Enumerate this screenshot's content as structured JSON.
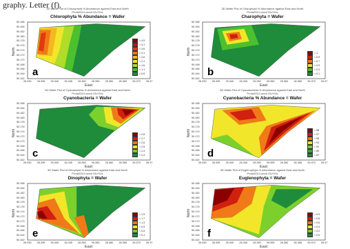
{
  "page": {
    "caption_fragment": "graphy. Letter (f)."
  },
  "colors": {
    "axis_box": "#222222",
    "plot_green": "#1e8c3a"
  },
  "panels": [
    {
      "letter": "a",
      "title": [
        "3D Wafer Plot of Chlorophyta % Abundance against East and North",
        "Prota2014 coord 31v*24c"
      ],
      "heading": "Chlorophyta % Abundance = Wafer",
      "xlabel": "East",
      "ylabel": "North",
      "xticks": [
        "26.330",
        "26.335",
        "26.340",
        "26.345",
        "26.350",
        "26.355",
        "26.360",
        "26.365",
        "26.370",
        "26.37"
      ],
      "yticks": [
        "50.186",
        "50.184",
        "50.182",
        "50.180",
        "50.178",
        "50.176",
        "50.174",
        "50.172",
        "50.170",
        "50.168",
        "50.166",
        "50.164",
        "50.162"
      ],
      "legend": [
        {
          "label": "> 4.5",
          "color": "#8b0000"
        },
        {
          "label": "< 4.1",
          "color": "#c0141a"
        },
        {
          "label": "< 3.6",
          "color": "#e03a10"
        },
        {
          "label": "< 3.1",
          "color": "#f07a18"
        },
        {
          "label": "< 2.6",
          "color": "#f5b820"
        },
        {
          "label": "< 2.1",
          "color": "#f2e62a"
        },
        {
          "label": "< 1.6",
          "color": "#b0dc2a"
        },
        {
          "label": "< 1.1",
          "color": "#4cc02e"
        },
        {
          "label": "< 0.6",
          "color": "#1e8c3a"
        }
      ]
    },
    {
      "letter": "b",
      "title": [
        "3D Wafer Plot of Charophyta % Abundance against East and North",
        "Prota2014 coord 31v*24c"
      ],
      "heading": "Charophyta = Wafer",
      "xlabel": "East",
      "ylabel": "North",
      "xticks": [
        "26.330",
        "26.335",
        "26.340",
        "26.345",
        "26.350",
        "26.355",
        "26.360",
        "26.365",
        "26.370",
        "26.37"
      ],
      "yticks": [
        "50.186",
        "50.184",
        "50.182",
        "50.180",
        "50.178",
        "50.176",
        "50.174",
        "50.172",
        "50.170",
        "50.168",
        "50.166",
        "50.164",
        "50.162"
      ],
      "legend": [
        {
          "label": "> 1",
          "color": "#8b0000"
        },
        {
          "label": "< 0.9",
          "color": "#d02010"
        },
        {
          "label": "< 0.7",
          "color": "#f07a18"
        },
        {
          "label": "< 0.5",
          "color": "#f2e62a"
        },
        {
          "label": "< 0.3",
          "color": "#4cc02e"
        },
        {
          "label": "< 0.1",
          "color": "#1e8c3a"
        }
      ]
    },
    {
      "letter": "c",
      "title": [
        "3D Wafer Plot of Cyanobacteria % Abundance against East and North",
        "Prota2014 coord 31v*24c"
      ],
      "heading": "Cyanobacteria = Wafer",
      "xlabel": "East",
      "ylabel": "North",
      "xticks": [
        "26.330",
        "26.335",
        "26.340",
        "26.345",
        "26.350",
        "26.355",
        "26.360",
        "26.365",
        "26.370",
        "26.37"
      ],
      "yticks": [
        "50.186",
        "50.184",
        "50.182",
        "50.180",
        "50.178",
        "50.176",
        "50.174",
        "50.172",
        "50.170",
        "50.168",
        "50.166",
        "50.164",
        "50.162"
      ],
      "legend": [
        {
          "label": "> 2.8",
          "color": "#8b0000"
        },
        {
          "label": "< 2.7",
          "color": "#d02010"
        },
        {
          "label": "< 2.6",
          "color": "#f07a18"
        },
        {
          "label": "< 2.5",
          "color": "#f2e62a"
        },
        {
          "label": "< 2.4",
          "color": "#7cd02c"
        },
        {
          "label": "< 2.3",
          "color": "#1e8c3a"
        }
      ]
    },
    {
      "letter": "d",
      "title": [
        "3D Wafer Plot of Cyanobacteria % Abundance against East and North",
        "Prota2014 coord 31v*24c"
      ],
      "heading": "Cyanobacteria % Abundance = Wafer",
      "xlabel": "East",
      "ylabel": "North",
      "xticks": [
        "26.330",
        "26.335",
        "26.340",
        "26.345",
        "26.350",
        "26.355",
        "26.360",
        "26.365",
        "26.370",
        "26.37"
      ],
      "yticks": [
        "50.186",
        "50.184",
        "50.182",
        "50.180",
        "50.178",
        "50.176",
        "50.174",
        "50.172",
        "50.170",
        "50.168",
        "50.166",
        "50.164",
        "50.162"
      ],
      "legend": [
        {
          "label": "> 98",
          "color": "#8b0000"
        },
        {
          "label": "< 97",
          "color": "#d02010"
        },
        {
          "label": "< 95",
          "color": "#f07a18"
        },
        {
          "label": "< 93",
          "color": "#f2e62a"
        },
        {
          "label": "< 91",
          "color": "#7cd02c"
        },
        {
          "label": "< 89",
          "color": "#3aa832"
        },
        {
          "label": "< 87",
          "color": "#1e8c3a"
        }
      ]
    },
    {
      "letter": "e",
      "title": [
        "3D Wafer Plot of Dinophyta % Abundance against East and North",
        "Prota2014 coord 31v*24c"
      ],
      "heading": "Dinophyta = Wafer",
      "xlabel": "East",
      "ylabel": "North",
      "xticks": [
        "26.330",
        "26.335",
        "26.340",
        "26.345",
        "26.350",
        "26.355",
        "26.360",
        "26.365",
        "26.370",
        "26.37"
      ],
      "yticks": [
        "50.186",
        "50.184",
        "50.182",
        "50.180",
        "50.178",
        "50.176",
        "50.174",
        "50.172",
        "50.170",
        "50.168",
        "50.166",
        "50.164",
        "50.162"
      ],
      "legend": [
        {
          "label": "> 1.9",
          "color": "#8b0000"
        },
        {
          "label": "< 1.7",
          "color": "#d02010"
        },
        {
          "label": "< 1.3",
          "color": "#f07a18"
        },
        {
          "label": "< 0.9",
          "color": "#f2e62a"
        },
        {
          "label": "< 0.5",
          "color": "#7cd02c"
        },
        {
          "label": "< 0.1",
          "color": "#1e8c3a"
        }
      ]
    },
    {
      "letter": "f",
      "title": [
        "3D Wafer Plot of Euglenophyta % Abundance against East and North",
        "Prota2014 coord 31v*24c"
      ],
      "heading": "Euglenophyta = Wafer",
      "xlabel": "East",
      "ylabel": "North",
      "xticks": [
        "26.330",
        "26.335",
        "26.340",
        "26.345",
        "26.350",
        "26.355",
        "26.360",
        "26.365",
        "26.370",
        "26.37"
      ],
      "yticks": [
        "50.186",
        "50.184",
        "50.182",
        "50.180",
        "50.178",
        "50.176",
        "50.174",
        "50.172",
        "50.170",
        "50.168",
        "50.166",
        "50.164",
        "50.162"
      ],
      "legend": [
        {
          "label": "> 0.9",
          "color": "#8b0000"
        },
        {
          "label": "< 0.8",
          "color": "#d02010"
        },
        {
          "label": "< 0.6",
          "color": "#f07a18"
        },
        {
          "label": "< 0.4",
          "color": "#f2e62a"
        },
        {
          "label": "< 0.2",
          "color": "#7cd02c"
        },
        {
          "label": "< 0.0",
          "color": "#1e8c3a"
        }
      ]
    }
  ],
  "chart_data": [
    {
      "type": "heatmap",
      "panel": "a",
      "title": "Chlorophyta % Abundance = Wafer",
      "xlabel": "East",
      "ylabel": "North",
      "xlim": [
        26.33,
        26.375
      ],
      "ylim": [
        50.162,
        50.186
      ],
      "grid": false,
      "legend": "right",
      "hot_region": "west (high values on left side)",
      "color_scale": [
        "> 4.5",
        "< 4.1",
        "< 3.6",
        "< 3.1",
        "< 2.6",
        "< 2.1",
        "< 1.6",
        "< 1.1",
        "< 0.6"
      ]
    },
    {
      "type": "heatmap",
      "panel": "b",
      "title": "Charophyta = Wafer",
      "xlabel": "East",
      "ylabel": "North",
      "xlim": [
        26.33,
        26.375
      ],
      "ylim": [
        50.162,
        50.186
      ],
      "grid": false,
      "legend": "right",
      "hot_region": "north-west (small red patch)",
      "color_scale": [
        "> 1",
        "< 0.9",
        "< 0.7",
        "< 0.5",
        "< 0.3",
        "< 0.1"
      ]
    },
    {
      "type": "heatmap",
      "panel": "c",
      "title": "Cyanobacteria = Wafer",
      "xlabel": "East",
      "ylabel": "North",
      "xlim": [
        26.33,
        26.375
      ],
      "ylim": [
        50.162,
        50.186
      ],
      "grid": false,
      "legend": "right",
      "hot_region": "north-east",
      "color_scale": [
        "> 2.8",
        "< 2.7",
        "< 2.6",
        "< 2.5",
        "< 2.4",
        "< 2.3"
      ]
    },
    {
      "type": "heatmap",
      "panel": "d",
      "title": "Cyanobacteria % Abundance = Wafer",
      "xlabel": "East",
      "ylabel": "North",
      "xlim": [
        26.33,
        26.375
      ],
      "ylim": [
        50.162,
        50.186
      ],
      "grid": false,
      "legend": "right",
      "hot_region": "east and north-west",
      "color_scale": [
        "> 98",
        "< 97",
        "< 95",
        "< 93",
        "< 91",
        "< 89",
        "< 87"
      ]
    },
    {
      "type": "heatmap",
      "panel": "e",
      "title": "Dinophyta = Wafer",
      "xlabel": "East",
      "ylabel": "North",
      "xlim": [
        26.33,
        26.375
      ],
      "ylim": [
        50.162,
        50.186
      ],
      "grid": false,
      "legend": "right",
      "hot_region": "south-west and south-centre",
      "color_scale": [
        "> 1.9",
        "< 1.7",
        "< 1.3",
        "< 0.9",
        "< 0.5",
        "< 0.1"
      ]
    },
    {
      "type": "heatmap",
      "panel": "f",
      "title": "Euglenophyta = Wafer",
      "xlabel": "East",
      "ylabel": "North",
      "xlim": [
        26.33,
        26.375
      ],
      "ylim": [
        50.162,
        50.186
      ],
      "grid": false,
      "legend": "right",
      "hot_region": "west (dark red)",
      "color_scale": [
        "> 0.9",
        "< 0.8",
        "< 0.6",
        "< 0.4",
        "< 0.2",
        "< 0.0"
      ]
    }
  ]
}
